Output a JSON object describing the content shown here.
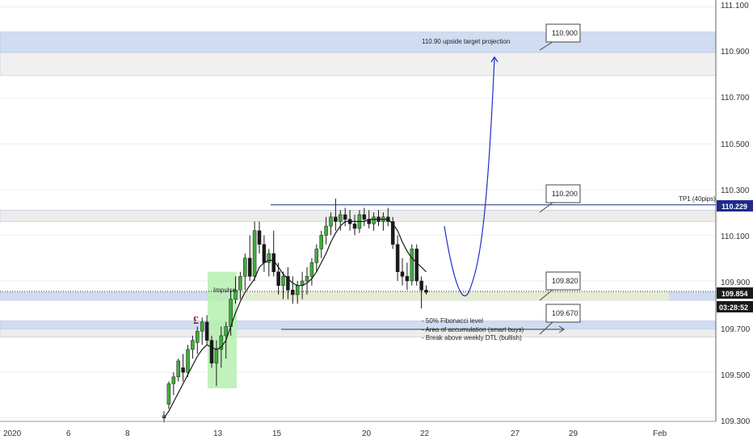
{
  "chart_data": {
    "type": "candlestick",
    "y_axis": {
      "range": [
        109.285,
        111.13
      ],
      "tick_labels": [
        "111.100",
        "110.900",
        "110.700",
        "110.500",
        "110.300",
        "110.100",
        "109.900",
        "109.700",
        "109.500",
        "109.300"
      ],
      "tick_values": [
        111.1,
        110.9,
        110.7,
        110.5,
        110.3,
        110.1,
        109.9,
        109.7,
        109.5,
        109.3
      ]
    },
    "x_axis": {
      "tick_labels": [
        "2020",
        "6",
        "8",
        "13",
        "15",
        "20",
        "22",
        "27",
        "29",
        "Feb"
      ]
    },
    "price_labels": [
      {
        "text": "110.229",
        "value": 110.229,
        "bg": "#1e2a8c",
        "fg": "#ffffff"
      },
      {
        "text": "109.854",
        "value": 109.854,
        "bg": "#1a1a1a",
        "fg": "#ffffff"
      },
      {
        "text": "03:28:52",
        "value": 109.81,
        "bg": "#1a1a1a",
        "fg": "#ffffff"
      }
    ],
    "zones": [
      {
        "low": 110.9,
        "high": 110.99,
        "color": "#cfdcf2"
      },
      {
        "low": 110.8,
        "high": 110.9,
        "color": "#f0f0f0"
      },
      {
        "low": 110.16,
        "high": 110.21,
        "color": "#ececec"
      },
      {
        "low": 109.815,
        "high": 109.85,
        "color": "#cfdcf2"
      },
      {
        "low": 109.69,
        "high": 109.725,
        "color": "#cfdcf2"
      },
      {
        "low": 109.655,
        "high": 109.69,
        "color": "#ececec"
      }
    ],
    "fib_zone": {
      "low": 109.815,
      "high": 109.85,
      "color": "#e6ecd0"
    },
    "impulse_zone": {
      "low": 109.43,
      "high": 109.94,
      "color": "#b6f0b0",
      "label": "Impulse"
    },
    "lines": [
      {
        "name": "tp1",
        "value": 110.233,
        "label": "TP1 (40pips)",
        "color": "#1e2a8c"
      }
    ],
    "callouts": [
      {
        "text": "110.900",
        "value": 110.9
      },
      {
        "text": "110.200",
        "value": 110.2
      },
      {
        "text": "109.820",
        "value": 109.82
      },
      {
        "text": "109.670",
        "value": 109.67
      }
    ],
    "annotations": [
      {
        "text": "110.90 upside target projection"
      },
      {
        "text": "- 50% Fibonacci level"
      },
      {
        "text": "- Area of accumulation (smart buys)"
      },
      {
        "text": "- Break above weekly DTL (bullish)"
      }
    ],
    "pound_marker": "£",
    "candles": [
      [
        109.3,
        109.33,
        109.28,
        109.31
      ],
      [
        109.36,
        109.46,
        109.34,
        109.45
      ],
      [
        109.45,
        109.5,
        109.4,
        109.48
      ],
      [
        109.48,
        109.56,
        109.46,
        109.55
      ],
      [
        109.52,
        109.58,
        109.46,
        109.5
      ],
      [
        109.5,
        109.62,
        109.48,
        109.6
      ],
      [
        109.6,
        109.66,
        109.56,
        109.64
      ],
      [
        109.63,
        109.7,
        109.58,
        109.68
      ],
      [
        109.68,
        109.74,
        109.62,
        109.72
      ],
      [
        109.72,
        109.75,
        109.62,
        109.64
      ],
      [
        109.64,
        109.66,
        109.52,
        109.54
      ],
      [
        109.54,
        109.64,
        109.44,
        109.6
      ],
      [
        109.6,
        109.7,
        109.52,
        109.66
      ],
      [
        109.66,
        109.72,
        109.56,
        109.7
      ],
      [
        109.7,
        109.86,
        109.66,
        109.82
      ],
      [
        109.82,
        109.92,
        109.8,
        109.86
      ],
      [
        109.86,
        109.94,
        109.82,
        109.92
      ],
      [
        109.92,
        110.02,
        109.86,
        110.0
      ],
      [
        110.0,
        110.1,
        109.9,
        109.92
      ],
      [
        109.92,
        110.16,
        109.9,
        110.12
      ],
      [
        110.12,
        110.16,
        110.02,
        110.06
      ],
      [
        110.06,
        110.1,
        109.94,
        109.98
      ],
      [
        109.98,
        110.04,
        109.92,
        110.02
      ],
      [
        110.02,
        110.12,
        109.92,
        109.94
      ],
      [
        109.94,
        109.98,
        109.84,
        109.88
      ],
      [
        109.88,
        109.94,
        109.82,
        109.92
      ],
      [
        109.92,
        109.96,
        109.82,
        109.86
      ],
      [
        109.86,
        109.92,
        109.8,
        109.84
      ],
      [
        109.84,
        109.9,
        109.8,
        109.88
      ],
      [
        109.88,
        109.94,
        109.82,
        109.9
      ],
      [
        109.9,
        109.96,
        109.84,
        109.92
      ],
      [
        109.92,
        110.0,
        109.88,
        109.98
      ],
      [
        109.98,
        110.06,
        109.94,
        110.04
      ],
      [
        110.04,
        110.12,
        110.0,
        110.1
      ],
      [
        110.1,
        110.18,
        110.06,
        110.14
      ],
      [
        110.14,
        110.2,
        110.1,
        110.18
      ],
      [
        110.18,
        110.26,
        110.12,
        110.16
      ],
      [
        110.16,
        110.21,
        110.12,
        110.19
      ],
      [
        110.19,
        110.22,
        110.14,
        110.17
      ],
      [
        110.17,
        110.21,
        110.12,
        110.15
      ],
      [
        110.15,
        110.19,
        110.1,
        110.13
      ],
      [
        110.13,
        110.21,
        110.11,
        110.19
      ],
      [
        110.19,
        110.22,
        110.14,
        110.17
      ],
      [
        110.17,
        110.21,
        110.13,
        110.15
      ],
      [
        110.15,
        110.2,
        110.12,
        110.18
      ],
      [
        110.18,
        110.21,
        110.14,
        110.16
      ],
      [
        110.16,
        110.2,
        110.12,
        110.18
      ],
      [
        110.18,
        110.22,
        110.14,
        110.16
      ],
      [
        110.16,
        110.18,
        110.04,
        110.06
      ],
      [
        110.06,
        110.1,
        109.9,
        109.94
      ],
      [
        109.94,
        110.0,
        109.88,
        109.92
      ],
      [
        109.92,
        109.98,
        109.86,
        109.9
      ],
      [
        109.9,
        110.06,
        109.88,
        110.04
      ],
      [
        110.04,
        110.06,
        109.88,
        109.9
      ],
      [
        109.9,
        109.92,
        109.78,
        109.86
      ],
      [
        109.86,
        109.88,
        109.84,
        109.85
      ]
    ],
    "ma_values": [
      109.3,
      109.33,
      109.37,
      109.41,
      109.45,
      109.49,
      109.53,
      109.57,
      109.6,
      109.62,
      109.61,
      109.6,
      109.61,
      109.64,
      109.7,
      109.76,
      109.81,
      109.85,
      109.88,
      109.91,
      109.96,
      109.98,
      109.99,
      109.99,
      109.96,
      109.93,
      109.91,
      109.89,
      109.88,
      109.88,
      109.89,
      109.91,
      109.94,
      109.98,
      110.02,
      110.07,
      110.11,
      110.14,
      110.16,
      110.16,
      110.16,
      110.16,
      110.16,
      110.17,
      110.17,
      110.17,
      110.17,
      110.17,
      110.15,
      110.12,
      110.07,
      110.03,
      110.0,
      109.98,
      109.96,
      109.94
    ],
    "projection": [
      [
        550,
        110.14
      ],
      [
        570,
        109.87
      ],
      [
        580,
        109.85
      ],
      [
        595,
        110.0
      ],
      [
        612,
        110.88
      ]
    ],
    "colors": {
      "bull": "#3fae3a",
      "bear": "#1a1a1a",
      "ma": "#1a1a1a",
      "projection": "#1f2fc8",
      "grid": "#eeeeee"
    }
  }
}
